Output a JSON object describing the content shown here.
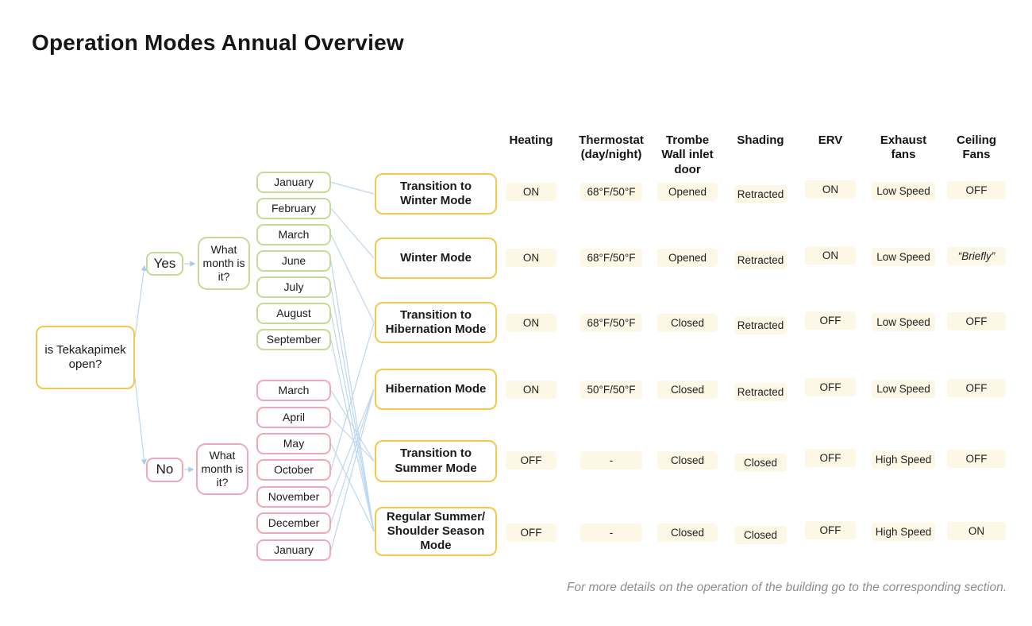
{
  "title": "Operation Modes Annual Overview",
  "footnote": "For more details on the operation of the building go to the corresponding section.",
  "colors": {
    "yellow_border": "#F2C84E",
    "green_border": "#C4DB95",
    "pink_border": "#F0A8B6",
    "connector_blue": "#BDD7EE",
    "cell_background": "#FDF7E6",
    "footnote_gray": "#8E8E8E",
    "text": "#1A1A1A"
  },
  "decision_tree": {
    "root_question": "is Tekakapimek open?",
    "branches": [
      {
        "answer": "Yes",
        "question": "What month is it?",
        "months": [
          "January",
          "February",
          "March",
          "June",
          "July",
          "August",
          "September"
        ]
      },
      {
        "answer": "No",
        "question": "What month is it?",
        "months": [
          "March",
          "April",
          "May",
          "October",
          "November",
          "December",
          "January"
        ]
      }
    ]
  },
  "modes": [
    "Transition to Winter Mode",
    "Winter Mode",
    "Transition to Hibernation Mode",
    "Hibernation Mode",
    "Transition to Summer Mode",
    "Regular Summer/ Shoulder Season Mode"
  ],
  "connections": {
    "yes_month_to_mode": [
      [
        0,
        0
      ],
      [
        1,
        1
      ],
      [
        2,
        2
      ],
      [
        3,
        5
      ],
      [
        4,
        5
      ],
      [
        5,
        5
      ],
      [
        6,
        5
      ]
    ],
    "no_month_to_mode": [
      [
        0,
        4
      ],
      [
        1,
        4
      ],
      [
        2,
        5
      ],
      [
        3,
        2
      ],
      [
        4,
        3
      ],
      [
        5,
        3
      ],
      [
        6,
        3
      ]
    ]
  },
  "table": {
    "columns": [
      "Heating",
      "Thermostat (day/night)",
      "Trombe Wall inlet door",
      "Shading",
      "ERV",
      "Exhaust fans",
      "Ceiling Fans"
    ],
    "rows": [
      [
        "ON",
        "68°F/50°F",
        "Opened",
        "Retracted",
        "ON",
        "Low Speed",
        "OFF"
      ],
      [
        "ON",
        "68°F/50°F",
        "Opened",
        "Retracted",
        "ON",
        "Low Speed",
        "“Briefly”"
      ],
      [
        "ON",
        "68°F/50°F",
        "Closed",
        "Retracted",
        "OFF",
        "Low Speed",
        "OFF"
      ],
      [
        "ON",
        "50°F/50°F",
        "Closed",
        "Retracted",
        "OFF",
        "Low Speed",
        "OFF"
      ],
      [
        "OFF",
        "-",
        "Closed",
        "Closed",
        "OFF",
        "High Speed",
        "OFF"
      ],
      [
        "OFF",
        "-",
        "Closed",
        "Closed",
        "OFF",
        "High Speed",
        "ON"
      ]
    ]
  }
}
